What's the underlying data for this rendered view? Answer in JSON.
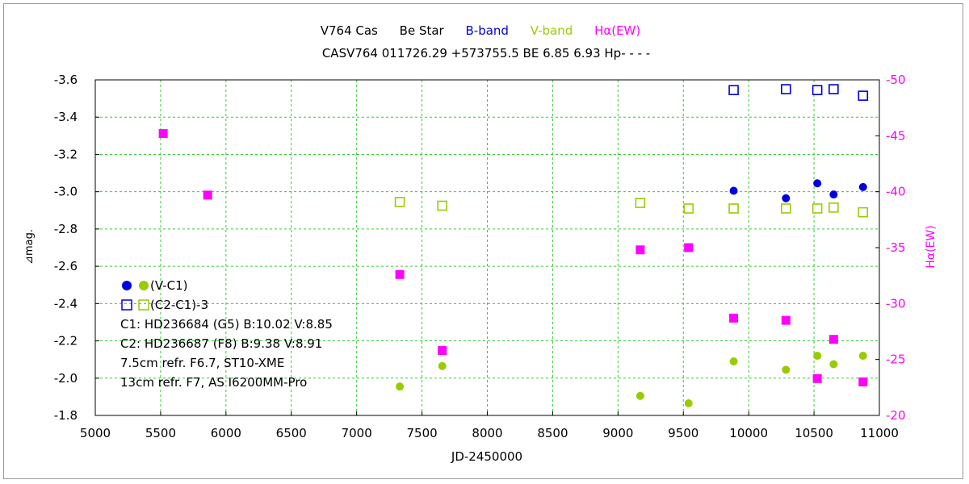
{
  "chart_data": {
    "type": "scatter",
    "title": {
      "star": "V764 Cas",
      "star_type": "Be Star",
      "b_label": "B-band",
      "v_label": "V-band",
      "h_label": "Hα(EW)",
      "subtitle": "CASV764 011726.29 +573755.5 BE 6.85 6.93 Hp- - - -"
    },
    "xlabel": "JD-2450000",
    "ylabel": "⊿mag.",
    "y2label": "Hα(EW)",
    "xlim": [
      5000,
      11000
    ],
    "ylim": [
      -1.8,
      -3.6
    ],
    "y2lim": [
      -20,
      -50
    ],
    "x_ticks": [
      "5000",
      "5500",
      "6000",
      "6500",
      "7000",
      "7500",
      "8000",
      "8500",
      "9000",
      "9500",
      "10000",
      "10500",
      "11000"
    ],
    "y_ticks": [
      "-3.6",
      "-3.4",
      "-3.2",
      "-3.0",
      "-2.8",
      "-2.6",
      "-2.4",
      "-2.2",
      "-2.0",
      "-1.8"
    ],
    "y2_ticks": [
      "-50",
      "-45",
      "-40",
      "-35",
      "-30",
      "-25",
      "-20"
    ],
    "grid": true,
    "colors": {
      "b": "#0000e0",
      "v": "#99cc00",
      "h": "#ff00ff",
      "grid": "#33cc33"
    },
    "series": [
      {
        "name": "(V-C1) B",
        "marker": "filled-circle",
        "color": "#0000e0",
        "axis": "left",
        "points": [
          [
            9885,
            -3.005
          ],
          [
            10285,
            -2.965
          ],
          [
            10525,
            -3.045
          ],
          [
            10650,
            -2.985
          ],
          [
            10875,
            -3.025
          ]
        ]
      },
      {
        "name": "(V-C1) V",
        "marker": "filled-circle",
        "color": "#99cc00",
        "axis": "left",
        "points": [
          [
            7330,
            -1.955
          ],
          [
            7655,
            -2.065
          ],
          [
            9170,
            -1.905
          ],
          [
            9540,
            -1.865
          ],
          [
            9885,
            -2.09
          ],
          [
            10285,
            -2.045
          ],
          [
            10525,
            -2.12
          ],
          [
            10650,
            -2.075
          ],
          [
            10875,
            -2.12
          ]
        ]
      },
      {
        "name": "(C2-C1)-3 B",
        "marker": "open-square",
        "color": "#0000e0",
        "axis": "left",
        "points": [
          [
            9885,
            -3.545
          ],
          [
            10285,
            -3.55
          ],
          [
            10525,
            -3.545
          ],
          [
            10650,
            -3.55
          ],
          [
            10875,
            -3.515
          ]
        ]
      },
      {
        "name": "(C2-C1)-3 V",
        "marker": "open-square",
        "color": "#99cc00",
        "axis": "left",
        "points": [
          [
            7330,
            -2.945
          ],
          [
            7655,
            -2.925
          ],
          [
            9170,
            -2.94
          ],
          [
            9540,
            -2.91
          ],
          [
            9885,
            -2.91
          ],
          [
            10285,
            -2.91
          ],
          [
            10525,
            -2.91
          ],
          [
            10650,
            -2.915
          ],
          [
            10875,
            -2.89
          ]
        ]
      },
      {
        "name": "Hα(EW)",
        "marker": "filled-square",
        "color": "#ff00ff",
        "axis": "right",
        "points": [
          [
            5520,
            -45.2
          ],
          [
            5860,
            -39.7
          ],
          [
            7330,
            -32.6
          ],
          [
            7655,
            -25.8
          ],
          [
            9170,
            -34.8
          ],
          [
            9540,
            -35.0
          ],
          [
            9885,
            -28.7
          ],
          [
            10285,
            -28.5
          ],
          [
            10525,
            -23.3
          ],
          [
            10650,
            -26.8
          ],
          [
            10875,
            -23.0
          ]
        ]
      }
    ],
    "legend": {
      "row1": "(V-C1)",
      "row2": "(C2-C1)-3",
      "notes": [
        "C1: HD236684 (G5)  B:10.02  V:8.85",
        "C2: HD236687 (F8)  B:9.38  V:8.91",
        "7.5cm  refr.  F6.7,  ST10-XME",
        "13cm  refr.  F7,  AS I6200MM-Pro"
      ]
    }
  }
}
